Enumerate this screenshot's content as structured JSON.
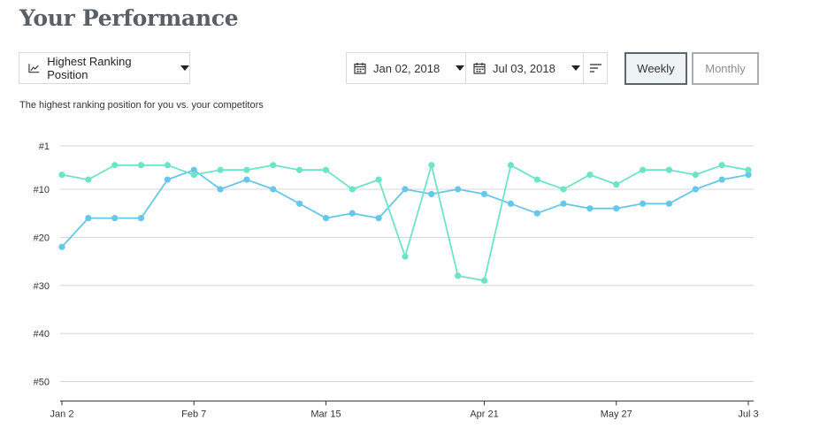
{
  "page": {
    "title": "Your Performance",
    "subtitle": "The highest ranking position for you vs. your competitors"
  },
  "controls": {
    "metric_label": "Highest Ranking Position",
    "start_date": "Jan 02, 2018",
    "end_date": "Jul 03, 2018",
    "weekly_label": "Weekly",
    "monthly_label": "Monthly"
  },
  "chart_data": {
    "type": "line",
    "y_inverted": true,
    "ylim": [
      1,
      54
    ],
    "y_ticks": [
      1,
      10,
      20,
      30,
      40,
      50
    ],
    "y_tick_labels": [
      "#1",
      "#10",
      "#20",
      "#30",
      "#40",
      "#50"
    ],
    "x_tick_labels": [
      {
        "week": 0,
        "label": "Jan 2"
      },
      {
        "week": 5,
        "label": "Feb 7"
      },
      {
        "week": 10,
        "label": "Mar 15"
      },
      {
        "week": 16,
        "label": "Apr 21"
      },
      {
        "week": 21,
        "label": "May 27"
      },
      {
        "week": 26,
        "label": "Jul 3"
      }
    ],
    "weeks": 27,
    "grid": true,
    "series": [
      {
        "color": "#66c7e8",
        "values": [
          22,
          16,
          16,
          16,
          8,
          6,
          10,
          8,
          10,
          13,
          16,
          15,
          16,
          10,
          11,
          10,
          11,
          13,
          15,
          13,
          14,
          14,
          13,
          13,
          10,
          8,
          7
        ]
      },
      {
        "color": "#6de3c8",
        "values": [
          7,
          8,
          5,
          5,
          5,
          7,
          6,
          6,
          5,
          6,
          6,
          10,
          8,
          24,
          5,
          28,
          29,
          5,
          8,
          10,
          7,
          9,
          6,
          6,
          7,
          5,
          6
        ]
      }
    ]
  }
}
